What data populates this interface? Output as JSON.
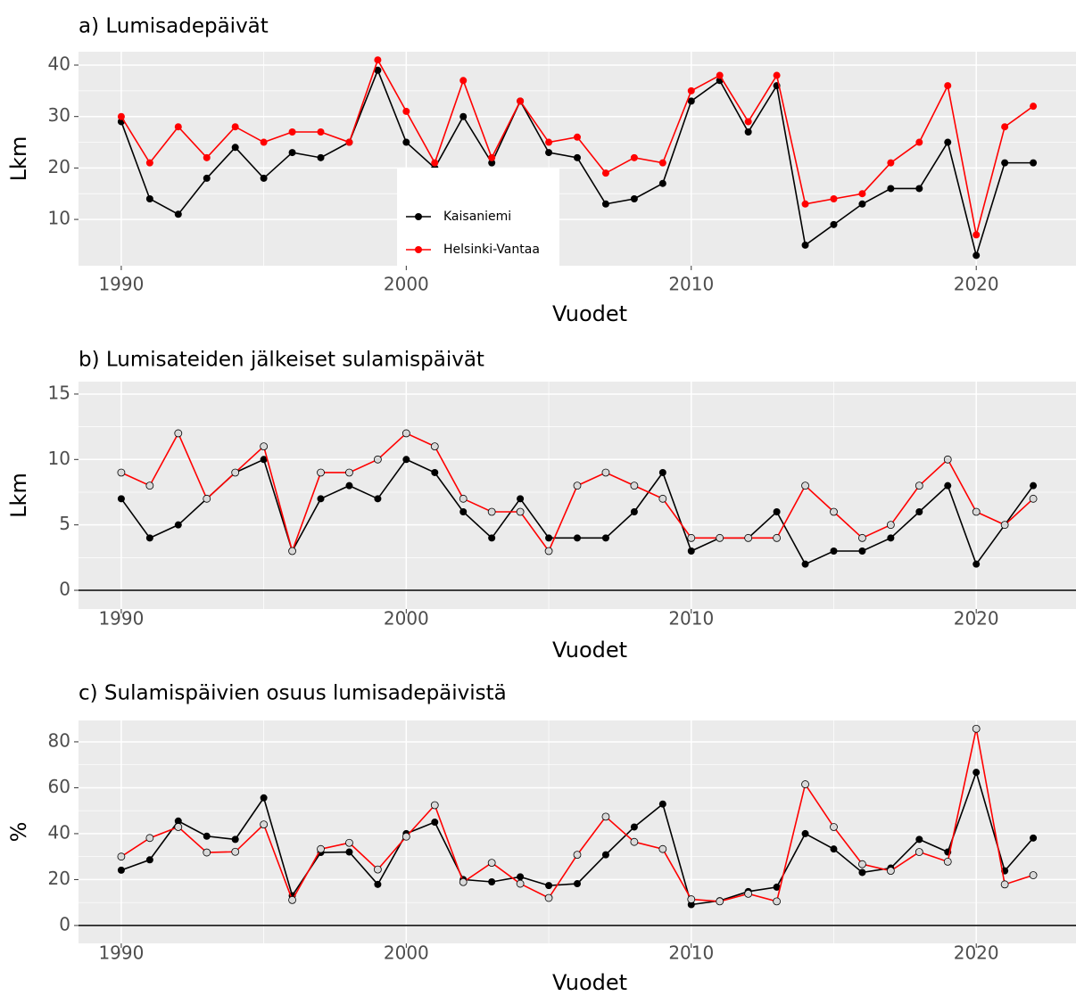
{
  "chart_data": [
    {
      "type": "line",
      "title": "a) Lumisadepäivät",
      "xlabel": "Vuodet",
      "ylabel": "Lkm",
      "x": [
        1990,
        1991,
        1992,
        1993,
        1994,
        1995,
        1996,
        1997,
        1998,
        1999,
        2000,
        2001,
        2002,
        2003,
        2004,
        2005,
        2006,
        2007,
        2008,
        2009,
        2010,
        2011,
        2012,
        2013,
        2014,
        2015,
        2016,
        2017,
        2018,
        2019,
        2020,
        2021,
        2022
      ],
      "series": [
        {
          "name": "Kaisaniemi",
          "color": "#000000",
          "marker": "filled",
          "values": [
            29,
            14,
            11,
            18,
            24,
            18,
            23,
            22,
            25,
            39,
            25,
            20,
            30,
            21,
            33,
            23,
            22,
            13,
            14,
            17,
            33,
            37,
            27,
            36,
            5,
            9,
            13,
            16,
            16,
            25,
            3,
            21,
            21
          ]
        },
        {
          "name": "Helsinki-Vantaa",
          "color": "#ff0000",
          "marker": "filled",
          "values": [
            30,
            21,
            28,
            22,
            28,
            25,
            27,
            27,
            25,
            41,
            31,
            21,
            37,
            22,
            33,
            25,
            26,
            19,
            22,
            21,
            35,
            38,
            29,
            38,
            13,
            14,
            15,
            21,
            25,
            36,
            7,
            28,
            32
          ]
        }
      ],
      "xlim": [
        1988.5,
        2023.5
      ],
      "xticks": [
        1990,
        2000,
        2010,
        2020
      ],
      "ylim": [
        1.0,
        42.6
      ],
      "yticks": [
        10,
        20,
        30,
        40
      ],
      "grid": true,
      "legend": "inside"
    },
    {
      "type": "line",
      "title": "b) Lumisateiden jälkeiset sulamispäivät",
      "xlabel": "Vuodet",
      "ylabel": "Lkm",
      "x": [
        1990,
        1991,
        1992,
        1993,
        1994,
        1995,
        1996,
        1997,
        1998,
        1999,
        2000,
        2001,
        2002,
        2003,
        2004,
        2005,
        2006,
        2007,
        2008,
        2009,
        2010,
        2011,
        2012,
        2013,
        2014,
        2015,
        2016,
        2017,
        2018,
        2019,
        2020,
        2021,
        2022
      ],
      "series": [
        {
          "name": "Kaisaniemi",
          "color": "#000000",
          "marker": "filled",
          "values": [
            7,
            4,
            5,
            7,
            9,
            10,
            3,
            7,
            8,
            7,
            10,
            9,
            6,
            4,
            7,
            4,
            4,
            4,
            6,
            9,
            3,
            4,
            4,
            6,
            2,
            3,
            3,
            4,
            6,
            8,
            2,
            5,
            8
          ]
        },
        {
          "name": "Helsinki-Vantaa",
          "color": "#ff0000",
          "marker": "open",
          "values": [
            9,
            8,
            12,
            7,
            9,
            11,
            3,
            9,
            9,
            10,
            12,
            11,
            7,
            6,
            6,
            3,
            8,
            9,
            8,
            7,
            4,
            4,
            4,
            4,
            8,
            6,
            4,
            5,
            8,
            10,
            6,
            5,
            7
          ]
        }
      ],
      "xlim": [
        1988.5,
        2023.5
      ],
      "xticks": [
        1990,
        2000,
        2010,
        2020
      ],
      "ylim": [
        -1.43,
        15.95
      ],
      "yticks": [
        0,
        5,
        10,
        15
      ],
      "grid": true,
      "hline": 0
    },
    {
      "type": "line",
      "title": "c) Sulamispäivien osuus lumisadepäivistä",
      "xlabel": "Vuodet",
      "ylabel": "%",
      "x": [
        1990,
        1991,
        1992,
        1993,
        1994,
        1995,
        1996,
        1997,
        1998,
        1999,
        2000,
        2001,
        2002,
        2003,
        2004,
        2005,
        2006,
        2007,
        2008,
        2009,
        2010,
        2011,
        2012,
        2013,
        2014,
        2015,
        2016,
        2017,
        2018,
        2019,
        2020,
        2021,
        2022
      ],
      "series": [
        {
          "name": "Kaisaniemi",
          "color": "#000000",
          "marker": "filled",
          "values": [
            24.1,
            28.6,
            45.5,
            38.9,
            37.5,
            55.6,
            13.0,
            31.8,
            32.0,
            17.9,
            40.0,
            45.0,
            20.0,
            19.0,
            21.2,
            17.4,
            18.2,
            30.8,
            42.9,
            52.9,
            9.1,
            10.8,
            14.8,
            16.7,
            40.0,
            33.3,
            23.1,
            25.0,
            37.5,
            32.0,
            66.7,
            23.8,
            38.1
          ]
        },
        {
          "name": "Helsinki-Vantaa",
          "color": "#ff0000",
          "marker": "open",
          "values": [
            30.0,
            38.1,
            42.9,
            31.8,
            32.1,
            44.0,
            11.1,
            33.3,
            36.0,
            24.4,
            38.7,
            52.4,
            18.9,
            27.3,
            18.2,
            12.0,
            30.8,
            47.4,
            36.4,
            33.3,
            11.4,
            10.5,
            13.8,
            10.5,
            61.5,
            42.9,
            26.7,
            23.8,
            32.0,
            27.8,
            85.7,
            17.9,
            21.9
          ]
        }
      ],
      "xlim": [
        1988.5,
        2023.5
      ],
      "xticks": [
        1990,
        2000,
        2010,
        2020
      ],
      "ylim": [
        -7.8,
        89.3
      ],
      "yticks": [
        0,
        20,
        40,
        60,
        80
      ],
      "grid": true,
      "hline": 0
    }
  ]
}
